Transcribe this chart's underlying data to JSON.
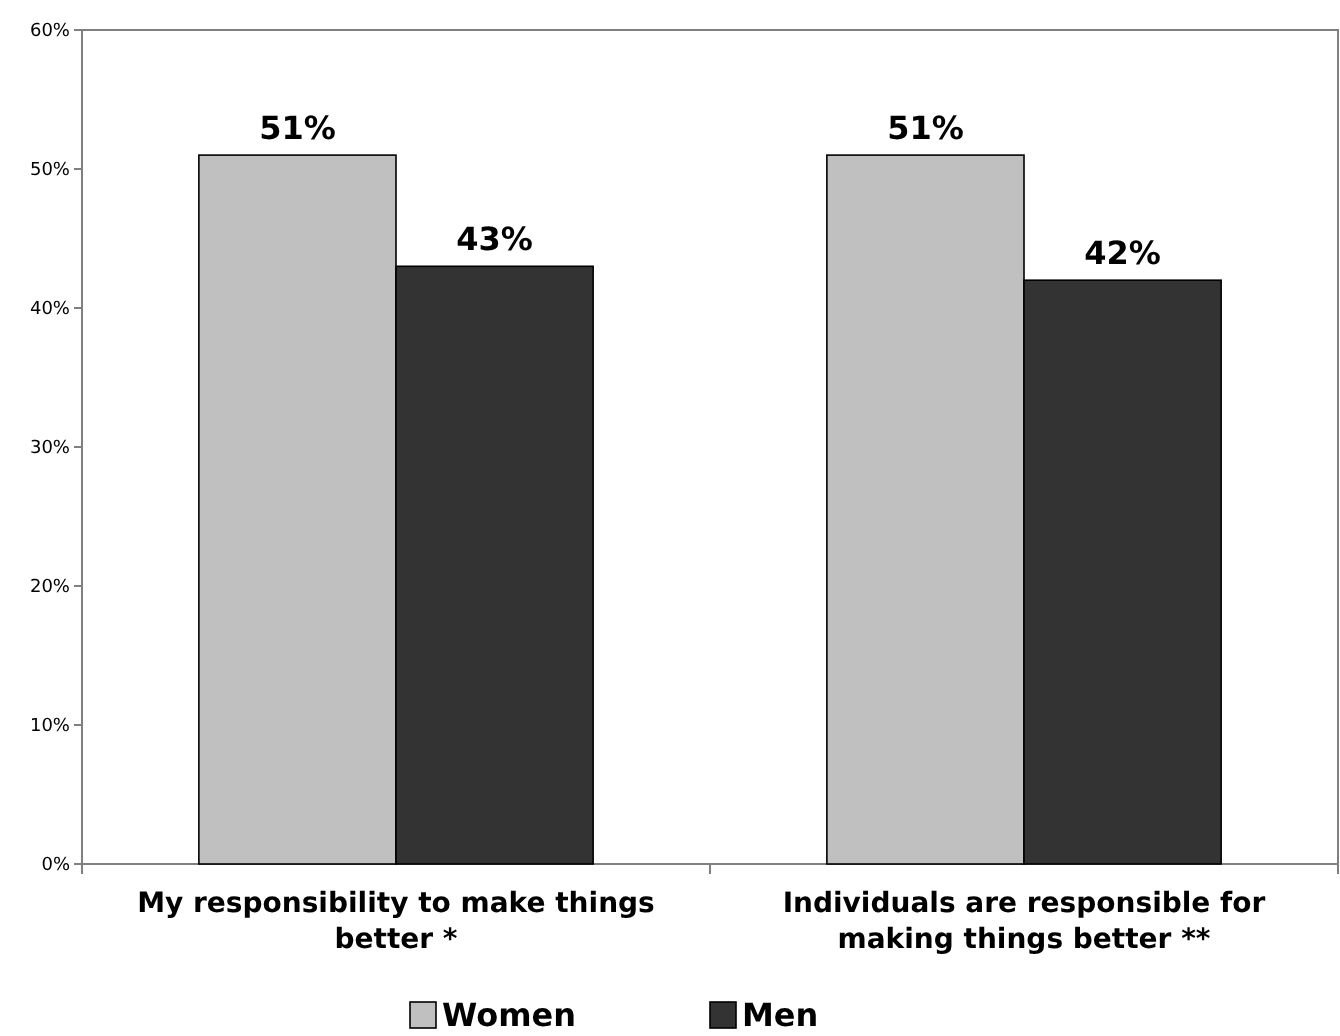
{
  "chart_data": {
    "type": "bar",
    "categories": [
      "My responsibility to make things better *",
      "Individuals are responsible for making things better **"
    ],
    "series": [
      {
        "name": "Women",
        "color": "#c0c0c0",
        "values": [
          51,
          51
        ],
        "value_labels": [
          "51%",
          "51%"
        ]
      },
      {
        "name": "Men",
        "color": "#333333",
        "values": [
          43,
          42
        ],
        "value_labels": [
          "43%",
          "42%"
        ]
      }
    ],
    "ylim": [
      0,
      60
    ],
    "yticks": [
      {
        "value": 0,
        "label": "0%"
      },
      {
        "value": 10,
        "label": "10%"
      },
      {
        "value": 20,
        "label": "20%"
      },
      {
        "value": 30,
        "label": "30%"
      },
      {
        "value": 40,
        "label": "40%"
      },
      {
        "value": 50,
        "label": "50%"
      },
      {
        "value": 60,
        "label": "60%"
      }
    ],
    "grid": false,
    "legend": "bottom"
  }
}
